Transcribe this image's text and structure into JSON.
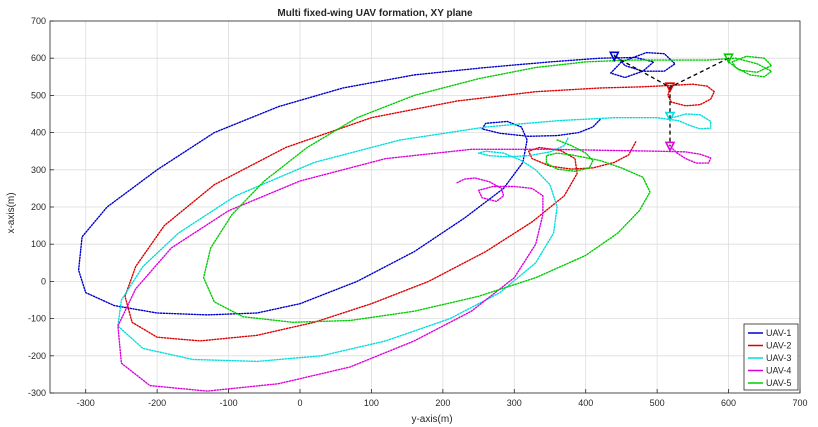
{
  "chart_data": {
    "type": "line",
    "title": "Multi fixed-wing UAV formation, XY plane",
    "xlabel": "y-axis(m)",
    "ylabel": "x-axis(m)",
    "xlim": [
      -350,
      700
    ],
    "ylim": [
      -300,
      700
    ],
    "xticks": [
      "-300",
      "-200",
      "-100",
      "0",
      "100",
      "200",
      "300",
      "400",
      "500",
      "600",
      "700"
    ],
    "yticks": [
      "-300",
      "-200",
      "-100",
      "0",
      "100",
      "200",
      "300",
      "400",
      "500",
      "600",
      "700"
    ],
    "grid": true,
    "legend_position": "bottom-right",
    "line_style": "dotted",
    "series": [
      {
        "name": "UAV-1",
        "color": "#0000cc",
        "points": [
          [
            420,
            435
          ],
          [
            410,
            415
          ],
          [
            390,
            400
          ],
          [
            360,
            392
          ],
          [
            320,
            390
          ],
          [
            280,
            398
          ],
          [
            255,
            410
          ],
          [
            260,
            425
          ],
          [
            290,
            430
          ],
          [
            310,
            415
          ],
          [
            318,
            380
          ],
          [
            312,
            320
          ],
          [
            285,
            250
          ],
          [
            230,
            170
          ],
          [
            160,
            80
          ],
          [
            80,
            0
          ],
          [
            0,
            -60
          ],
          [
            -60,
            -85
          ],
          [
            -130,
            -90
          ],
          [
            -200,
            -85
          ],
          [
            -260,
            -65
          ],
          [
            -300,
            -30
          ],
          [
            -310,
            30
          ],
          [
            -305,
            120
          ],
          [
            -270,
            200
          ],
          [
            -200,
            300
          ],
          [
            -120,
            400
          ],
          [
            -30,
            470
          ],
          [
            60,
            520
          ],
          [
            160,
            555
          ],
          [
            260,
            575
          ],
          [
            350,
            590
          ],
          [
            420,
            600
          ],
          [
            470,
            602
          ],
          [
            495,
            590
          ],
          [
            480,
            565
          ],
          [
            455,
            548
          ],
          [
            435,
            560
          ],
          [
            450,
            590
          ],
          [
            485,
            615
          ],
          [
            510,
            612
          ],
          [
            525,
            585
          ],
          [
            510,
            565
          ],
          [
            480,
            565
          ],
          [
            455,
            580
          ],
          [
            445,
            602
          ],
          [
            440,
            608
          ]
        ]
      },
      {
        "name": "UAV-2",
        "color": "#dd0000",
        "points": [
          [
            470,
            375
          ],
          [
            460,
            340
          ],
          [
            440,
            320
          ],
          [
            410,
            305
          ],
          [
            380,
            302
          ],
          [
            350,
            310
          ],
          [
            325,
            330
          ],
          [
            320,
            350
          ],
          [
            335,
            360
          ],
          [
            365,
            352
          ],
          [
            385,
            330
          ],
          [
            388,
            290
          ],
          [
            370,
            230
          ],
          [
            325,
            160
          ],
          [
            260,
            80
          ],
          [
            180,
            0
          ],
          [
            100,
            -60
          ],
          [
            20,
            -110
          ],
          [
            -60,
            -145
          ],
          [
            -140,
            -160
          ],
          [
            -200,
            -150
          ],
          [
            -235,
            -110
          ],
          [
            -245,
            -40
          ],
          [
            -230,
            40
          ],
          [
            -190,
            150
          ],
          [
            -120,
            260
          ],
          [
            -20,
            360
          ],
          [
            100,
            440
          ],
          [
            220,
            485
          ],
          [
            330,
            510
          ],
          [
            420,
            520
          ],
          [
            480,
            523
          ],
          [
            520,
            527
          ],
          [
            550,
            530
          ],
          [
            570,
            525
          ],
          [
            580,
            510
          ],
          [
            575,
            490
          ],
          [
            560,
            475
          ],
          [
            540,
            472
          ],
          [
            520,
            482
          ],
          [
            515,
            500
          ],
          [
            518,
            520
          ]
        ]
      },
      {
        "name": "UAV-3",
        "color": "#00dddd",
        "points": [
          [
            375,
            385
          ],
          [
            370,
            365
          ],
          [
            350,
            348
          ],
          [
            320,
            338
          ],
          [
            290,
            335
          ],
          [
            265,
            338
          ],
          [
            250,
            345
          ],
          [
            260,
            350
          ],
          [
            285,
            345
          ],
          [
            310,
            325
          ],
          [
            330,
            300
          ],
          [
            350,
            260
          ],
          [
            360,
            200
          ],
          [
            355,
            130
          ],
          [
            330,
            50
          ],
          [
            280,
            -30
          ],
          [
            210,
            -100
          ],
          [
            120,
            -160
          ],
          [
            30,
            -200
          ],
          [
            -60,
            -215
          ],
          [
            -150,
            -210
          ],
          [
            -220,
            -180
          ],
          [
            -255,
            -120
          ],
          [
            -250,
            -50
          ],
          [
            -220,
            40
          ],
          [
            -170,
            130
          ],
          [
            -90,
            230
          ],
          [
            20,
            320
          ],
          [
            140,
            380
          ],
          [
            260,
            415
          ],
          [
            360,
            432
          ],
          [
            440,
            440
          ],
          [
            500,
            440
          ],
          [
            530,
            432
          ],
          [
            545,
            420
          ],
          [
            560,
            410
          ],
          [
            575,
            412
          ],
          [
            575,
            430
          ],
          [
            560,
            448
          ],
          [
            540,
            450
          ],
          [
            525,
            442
          ],
          [
            520,
            440
          ]
        ]
      },
      {
        "name": "UAV-4",
        "color": "#dd00dd",
        "points": [
          [
            220,
            265
          ],
          [
            230,
            275
          ],
          [
            245,
            278
          ],
          [
            265,
            268
          ],
          [
            282,
            250
          ],
          [
            285,
            230
          ],
          [
            275,
            215
          ],
          [
            255,
            225
          ],
          [
            250,
            245
          ],
          [
            270,
            255
          ],
          [
            300,
            255
          ],
          [
            325,
            250
          ],
          [
            340,
            230
          ],
          [
            340,
            180
          ],
          [
            330,
            100
          ],
          [
            300,
            10
          ],
          [
            240,
            -80
          ],
          [
            160,
            -160
          ],
          [
            70,
            -230
          ],
          [
            -30,
            -275
          ],
          [
            -130,
            -295
          ],
          [
            -210,
            -280
          ],
          [
            -250,
            -220
          ],
          [
            -255,
            -120
          ],
          [
            -230,
            -20
          ],
          [
            -180,
            90
          ],
          [
            -100,
            190
          ],
          [
            0,
            270
          ],
          [
            120,
            330
          ],
          [
            240,
            355
          ],
          [
            350,
            355
          ],
          [
            440,
            352
          ],
          [
            500,
            350
          ],
          [
            540,
            348
          ],
          [
            560,
            342
          ],
          [
            575,
            332
          ],
          [
            572,
            318
          ],
          [
            555,
            318
          ],
          [
            540,
            330
          ],
          [
            528,
            345
          ],
          [
            520,
            360
          ]
        ]
      },
      {
        "name": "UAV-5",
        "color": "#00cc00",
        "points": [
          [
            360,
            380
          ],
          [
            380,
            365
          ],
          [
            400,
            345
          ],
          [
            410,
            325
          ],
          [
            405,
            305
          ],
          [
            385,
            296
          ],
          [
            360,
            302
          ],
          [
            345,
            318
          ],
          [
            345,
            338
          ],
          [
            360,
            345
          ],
          [
            380,
            340
          ],
          [
            420,
            325
          ],
          [
            450,
            305
          ],
          [
            480,
            280
          ],
          [
            490,
            240
          ],
          [
            475,
            190
          ],
          [
            445,
            130
          ],
          [
            400,
            70
          ],
          [
            330,
            10
          ],
          [
            250,
            -40
          ],
          [
            160,
            -80
          ],
          [
            70,
            -105
          ],
          [
            -10,
            -110
          ],
          [
            -80,
            -95
          ],
          [
            -120,
            -55
          ],
          [
            -135,
            10
          ],
          [
            -125,
            90
          ],
          [
            -95,
            180
          ],
          [
            -50,
            270
          ],
          [
            10,
            360
          ],
          [
            80,
            440
          ],
          [
            160,
            500
          ],
          [
            250,
            545
          ],
          [
            330,
            575
          ],
          [
            400,
            590
          ],
          [
            460,
            595
          ],
          [
            520,
            595
          ],
          [
            570,
            595
          ],
          [
            610,
            600
          ],
          [
            640,
            585
          ],
          [
            660,
            565
          ],
          [
            650,
            550
          ],
          [
            630,
            555
          ],
          [
            610,
            575
          ],
          [
            605,
            590
          ],
          [
            625,
            605
          ],
          [
            650,
            600
          ],
          [
            660,
            580
          ],
          [
            640,
            562
          ],
          [
            615,
            568
          ],
          [
            600,
            590
          ],
          [
            600,
            600
          ]
        ]
      }
    ],
    "markers": [
      {
        "name": "UAV-1",
        "x": 440,
        "y": 605,
        "color": "#0000cc"
      },
      {
        "name": "UAV-2",
        "x": 518,
        "y": 522,
        "color": "#dd0000"
      },
      {
        "name": "UAV-3",
        "x": 518,
        "y": 443,
        "color": "#00dddd"
      },
      {
        "name": "UAV-4",
        "x": 518,
        "y": 363,
        "color": "#dd00dd"
      },
      {
        "name": "UAV-5",
        "x": 600,
        "y": 600,
        "color": "#00cc00"
      }
    ],
    "formation_links": [
      [
        [
          440,
          605
        ],
        [
          518,
          522
        ]
      ],
      [
        [
          600,
          600
        ],
        [
          518,
          522
        ]
      ],
      [
        [
          518,
          522
        ],
        [
          518,
          443
        ]
      ],
      [
        [
          518,
          443
        ],
        [
          518,
          363
        ]
      ]
    ]
  }
}
